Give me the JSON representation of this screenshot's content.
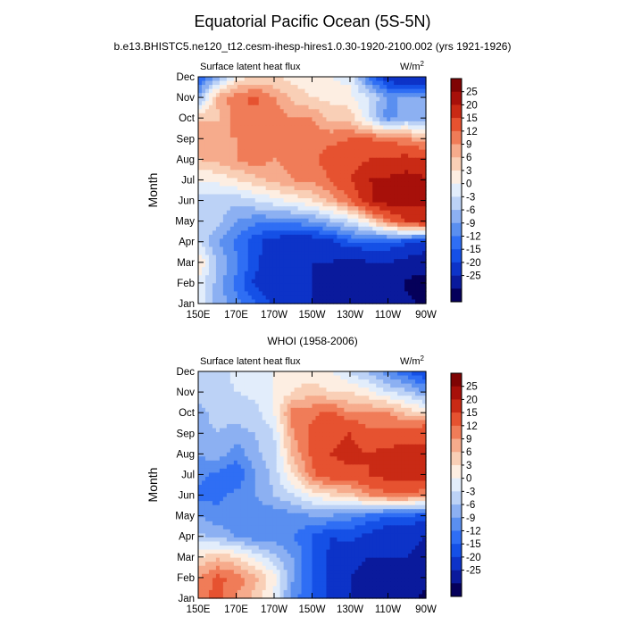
{
  "page": {
    "title": "Equatorial Pacific Ocean (5S-5N)",
    "subtitle": "b.e13.BHISTC5.ne120_t12.cesm-ihesp-hires1.0.30-1920-2100.002 (yrs 1921-1926)"
  },
  "colors": {
    "levels": [
      "#05005a",
      "#0a1a9c",
      "#0d33c8",
      "#1550e6",
      "#2f6ef4",
      "#5a8ff0",
      "#8cb0f2",
      "#bcd2f6",
      "#e2edfb",
      "#fdeee2",
      "#f9cfb6",
      "#f6ab8c",
      "#f07c58",
      "#e65230",
      "#c92a15",
      "#a7100a",
      "#7f0404"
    ]
  },
  "chart_data": [
    {
      "type": "heatmap",
      "name": "model",
      "label_left": "Surface latent heat flux",
      "label_right_base": "W/m",
      "label_right_sup": "2",
      "ylabel": "Month",
      "x_ticks": [
        "150E",
        "170E",
        "170W",
        "150W",
        "130W",
        "110W",
        "90W"
      ],
      "x_tick_lon": [
        150,
        170,
        190,
        210,
        230,
        250,
        270
      ],
      "y_ticks": [
        "Jan",
        "Feb",
        "Mar",
        "Apr",
        "May",
        "Jun",
        "Jul",
        "Aug",
        "Sep",
        "Oct",
        "Nov",
        "Dec"
      ],
      "xlim": [
        150,
        270
      ],
      "colorbar_levels": [
        -25,
        -20,
        -15,
        -12,
        -9,
        -6,
        -3,
        0,
        3,
        6,
        9,
        12,
        15,
        20,
        25
      ],
      "colorbar_labels": [
        "25",
        "20",
        "15",
        "12",
        "9",
        "6",
        "3",
        "0",
        "-3",
        "-6",
        "-9",
        "-12",
        "-15",
        "-20",
        "-25"
      ],
      "lon": [
        150,
        160,
        170,
        180,
        190,
        200,
        210,
        220,
        230,
        240,
        250,
        260,
        270
      ],
      "values": [
        [
          2,
          -4,
          -8,
          -12,
          -16,
          -18,
          -20,
          -22,
          -22,
          -20,
          -22,
          -24,
          -26
        ],
        [
          2,
          -4,
          -10,
          -16,
          -18,
          -20,
          -20,
          -22,
          -24,
          -20,
          -22,
          -26,
          -26
        ],
        [
          6,
          -3,
          -8,
          -14,
          -18,
          -19,
          -20,
          -20,
          -22,
          -20,
          -20,
          -22,
          -24
        ],
        [
          0,
          -6,
          -10,
          -14,
          -17,
          -18,
          -18,
          -16,
          -12,
          -12,
          -12,
          -14,
          -16
        ],
        [
          0,
          -2,
          -6,
          -8,
          -8,
          -8,
          -6,
          -3,
          0,
          6,
          14,
          20,
          22
        ],
        [
          -2,
          -2,
          -2,
          0,
          2,
          4,
          6,
          10,
          15,
          24,
          28,
          28,
          26
        ],
        [
          3,
          4,
          6,
          8,
          10,
          12,
          13,
          15,
          20,
          25,
          26,
          27,
          26
        ],
        [
          9,
          10,
          12,
          14,
          12,
          13,
          14,
          17,
          18,
          20,
          20,
          22,
          20
        ],
        [
          12,
          12,
          12,
          12,
          12,
          12,
          14,
          14,
          15,
          15,
          14,
          12,
          10
        ],
        [
          8,
          8,
          14,
          14,
          14,
          12,
          12,
          8,
          8,
          0,
          -8,
          -4,
          -6
        ],
        [
          -5,
          10,
          14,
          16,
          12,
          8,
          6,
          5,
          4,
          0,
          -6,
          -6,
          -6
        ],
        [
          -12,
          -6,
          4,
          6,
          6,
          5,
          4,
          3,
          2,
          -10,
          -18,
          -20,
          -20
        ]
      ]
    },
    {
      "type": "heatmap",
      "name": "obs",
      "title": "WHOI (1958-2006)",
      "label_left": "Surface latent heat flux",
      "label_right_base": "W/m",
      "label_right_sup": "2",
      "ylabel": "Month",
      "x_ticks": [
        "150E",
        "170E",
        "170W",
        "150W",
        "130W",
        "110W",
        "90W"
      ],
      "x_tick_lon": [
        150,
        170,
        190,
        210,
        230,
        250,
        270
      ],
      "y_ticks": [
        "Jan",
        "Feb",
        "Mar",
        "Apr",
        "May",
        "Jun",
        "Jul",
        "Aug",
        "Sep",
        "Oct",
        "Nov",
        "Dec"
      ],
      "xlim": [
        150,
        270
      ],
      "colorbar_levels": [
        -25,
        -20,
        -15,
        -12,
        -9,
        -6,
        -3,
        0,
        3,
        6,
        9,
        12,
        15,
        20,
        25
      ],
      "colorbar_labels": [
        "25",
        "20",
        "15",
        "12",
        "9",
        "6",
        "3",
        "0",
        "-3",
        "-6",
        "-9",
        "-12",
        "-15",
        "-20",
        "-25"
      ],
      "lon": [
        150,
        160,
        170,
        180,
        190,
        200,
        210,
        220,
        230,
        240,
        250,
        260,
        270
      ],
      "values": [
        [
          14,
          16,
          12,
          8,
          2,
          -8,
          -12,
          -16,
          -20,
          -22,
          -24,
          -24,
          -26
        ],
        [
          12,
          16,
          14,
          10,
          4,
          -6,
          -12,
          -16,
          -20,
          -22,
          -22,
          -22,
          -24
        ],
        [
          6,
          8,
          6,
          2,
          -2,
          -6,
          -12,
          -16,
          -18,
          -20,
          -20,
          -20,
          -22
        ],
        [
          -2,
          -4,
          -6,
          -8,
          -8,
          -9,
          -12,
          -15,
          -14,
          -16,
          -18,
          -18,
          -20
        ],
        [
          -6,
          -8,
          -8,
          -8,
          -8,
          -7,
          -6,
          -6,
          -8,
          -10,
          -12,
          -12,
          -14
        ],
        [
          -10,
          -10,
          -8,
          -6,
          -3,
          0,
          4,
          6,
          8,
          12,
          14,
          14,
          12
        ],
        [
          -8,
          -10,
          -12,
          -6,
          -2,
          6,
          14,
          18,
          18,
          20,
          22,
          23,
          24
        ],
        [
          -6,
          -4,
          -8,
          -4,
          -1,
          10,
          16,
          20,
          22,
          20,
          22,
          22,
          20
        ],
        [
          -4,
          -3,
          -4,
          -3,
          0,
          12,
          16,
          18,
          20,
          16,
          16,
          18,
          20
        ],
        [
          -4,
          -2,
          -2,
          -1,
          3,
          14,
          14,
          16,
          12,
          12,
          12,
          8,
          6
        ],
        [
          -2,
          -1,
          0,
          1,
          3,
          6,
          8,
          6,
          6,
          4,
          0,
          -2,
          -6
        ],
        [
          -3,
          -2,
          1,
          3,
          3,
          4,
          4,
          3,
          0,
          -4,
          -8,
          -12,
          -16
        ]
      ]
    }
  ]
}
